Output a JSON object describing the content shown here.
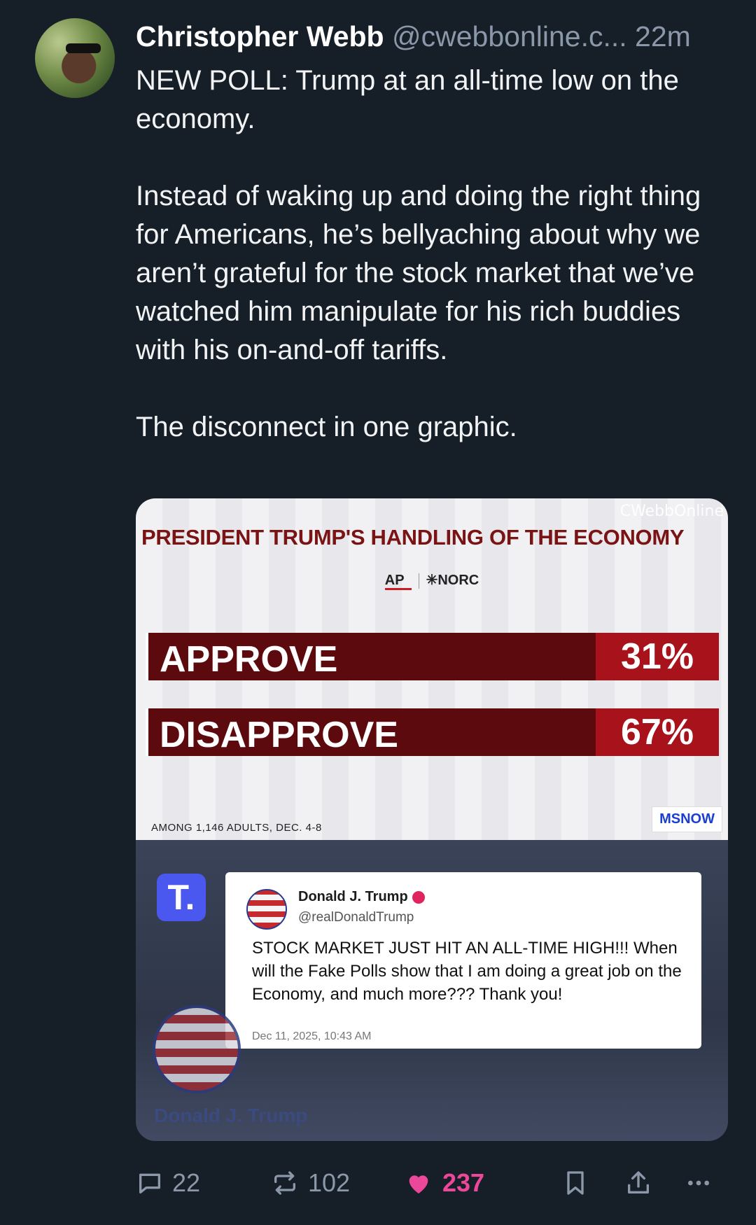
{
  "post": {
    "author_name": "Christopher Webb",
    "handle": "@cwebbonline.c...",
    "time": "22m",
    "paragraphs": [
      "NEW POLL: Trump at an all-time low on the economy.",
      "Instead of waking up and doing the right thing for Americans, he’s bellyaching about why we aren’t grateful for the stock market that we’ve watched him manipulate for his rich buddies with his on-and-off tariffs.",
      "The disconnect in one graphic."
    ]
  },
  "graphic": {
    "watermark": "CWebbOnline",
    "title": "PRESIDENT TRUMP'S HANDLING OF THE ECONOMY",
    "source_ap": "AP",
    "source_norc": "✳NORC",
    "rows": [
      {
        "label": "APPROVE",
        "value": "31%"
      },
      {
        "label": "DISAPPROVE",
        "value": "67%"
      }
    ],
    "footnote": "AMONG 1,146 ADULTS, DEC. 4-8",
    "brand": "MSNOW"
  },
  "truth_post": {
    "logo": "T.",
    "name": "Donald J. Trump",
    "handle": "@realDonaldTrump",
    "body": "STOCK MARKET JUST HIT AN ALL-TIME HIGH!!! When will the Fake Polls show that I am doing a great job on the Economy, and much more??? Thank you!",
    "date": "Dec 11, 2025, 10:43 AM",
    "profile_name": "Donald J. Trump"
  },
  "actions": {
    "replies": "22",
    "reposts": "102",
    "likes": "237",
    "like_color": "#ec4899",
    "icons": [
      "reply-icon",
      "repost-icon",
      "heart-icon",
      "bookmark-icon",
      "share-icon",
      "more-icon"
    ]
  }
}
